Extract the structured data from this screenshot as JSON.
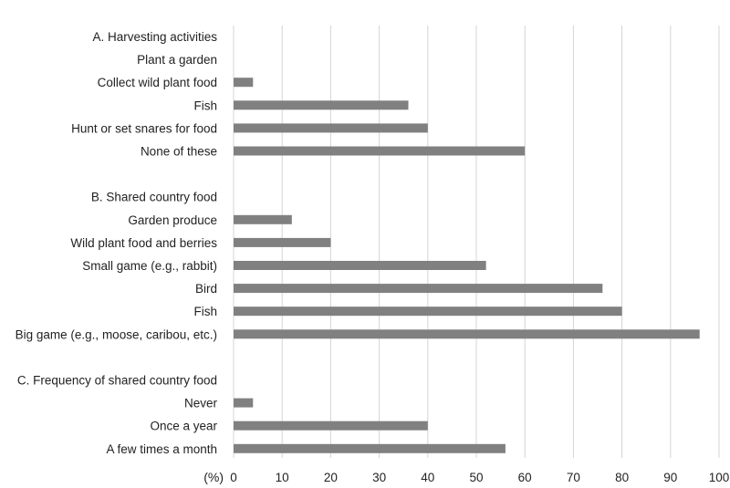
{
  "chart_data": {
    "type": "bar",
    "orientation": "horizontal",
    "title": "",
    "xlabel": "(%)",
    "ylabel": "",
    "xlim": [
      0,
      100
    ],
    "xticks": [
      0,
      10,
      20,
      30,
      40,
      50,
      60,
      70,
      80,
      90,
      100
    ],
    "grid": "vertical",
    "legend": "none",
    "bar_color": "#808080",
    "rows": [
      {
        "label": "A. Harvesting activities",
        "value": null,
        "heading": true
      },
      {
        "label": "Plant a garden",
        "value": 0
      },
      {
        "label": "Collect wild plant food",
        "value": 4
      },
      {
        "label": "Fish",
        "value": 36
      },
      {
        "label": "Hunt or set snares for food",
        "value": 40
      },
      {
        "label": "None of these",
        "value": 60
      },
      {
        "label": "",
        "value": null,
        "spacer": true
      },
      {
        "label": "B. Shared country food",
        "value": null,
        "heading": true
      },
      {
        "label": "Garden produce",
        "value": 12
      },
      {
        "label": "Wild plant food and berries",
        "value": 20
      },
      {
        "label": "Small game (e.g., rabbit)",
        "value": 52
      },
      {
        "label": "Bird",
        "value": 76
      },
      {
        "label": "Fish",
        "value": 80
      },
      {
        "label": "Big game (e.g., moose, caribou, etc.)",
        "value": 96
      },
      {
        "label": "",
        "value": null,
        "spacer": true
      },
      {
        "label": "C. Frequency of shared country food",
        "value": null,
        "heading": true
      },
      {
        "label": "Never",
        "value": 4
      },
      {
        "label": "Once a year",
        "value": 40
      },
      {
        "label": "A few times a month",
        "value": 56
      }
    ]
  }
}
